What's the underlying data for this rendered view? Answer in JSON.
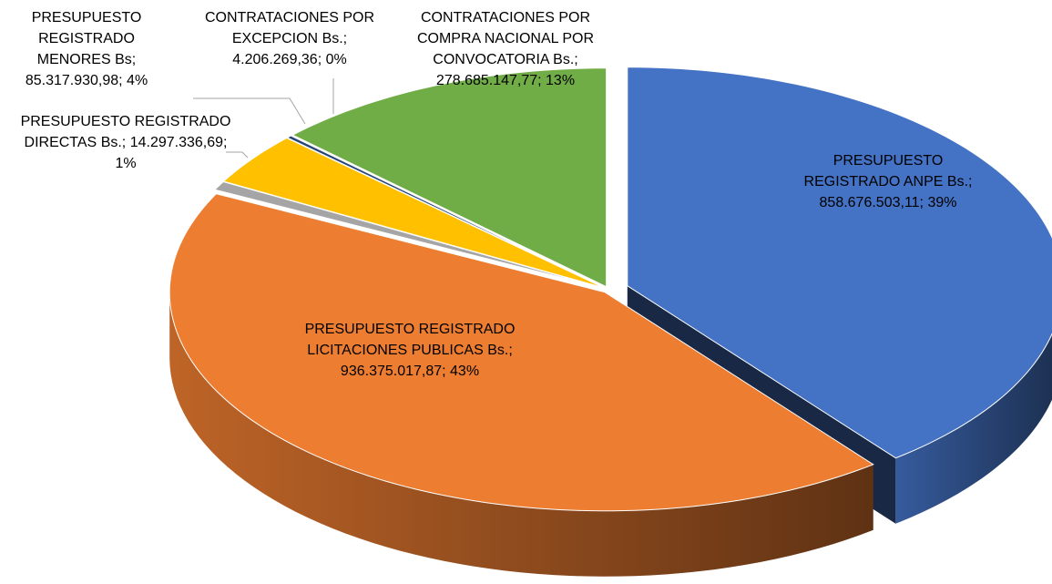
{
  "chart_data": {
    "type": "pie",
    "categories": [
      "PRESUPUESTO REGISTRADO ANPE",
      "PRESUPUESTO REGISTRADO LICITACIONES PUBLICAS",
      "PRESUPUESTO REGISTRADO DIRECTAS",
      "PRESUPUESTO REGISTRADO MENORES",
      "CONTRATACIONES POR EXCEPCION",
      "CONTRATACIONES POR COMPRA NACIONAL POR CONVOCATORIA"
    ],
    "values": [
      858676503.11,
      936375017.87,
      14297336.69,
      85317930.98,
      4206269.36,
      278685147.77
    ],
    "value_labels": [
      "Bs.; 858.676.503,11; 39%",
      "Bs.; 936.375.017,87; 43%",
      "Bs.; 14.297.336,69; 1%",
      "Bs; 85.317.930,98; 4%",
      "Bs.; 4.206.269,36; 0%",
      "Bs.; 278.685.147,77; 13%"
    ],
    "colors": [
      "#4472c4",
      "#ed7d31",
      "#a5a5a5",
      "#ffc000",
      "#264478",
      "#70ad47"
    ]
  }
}
